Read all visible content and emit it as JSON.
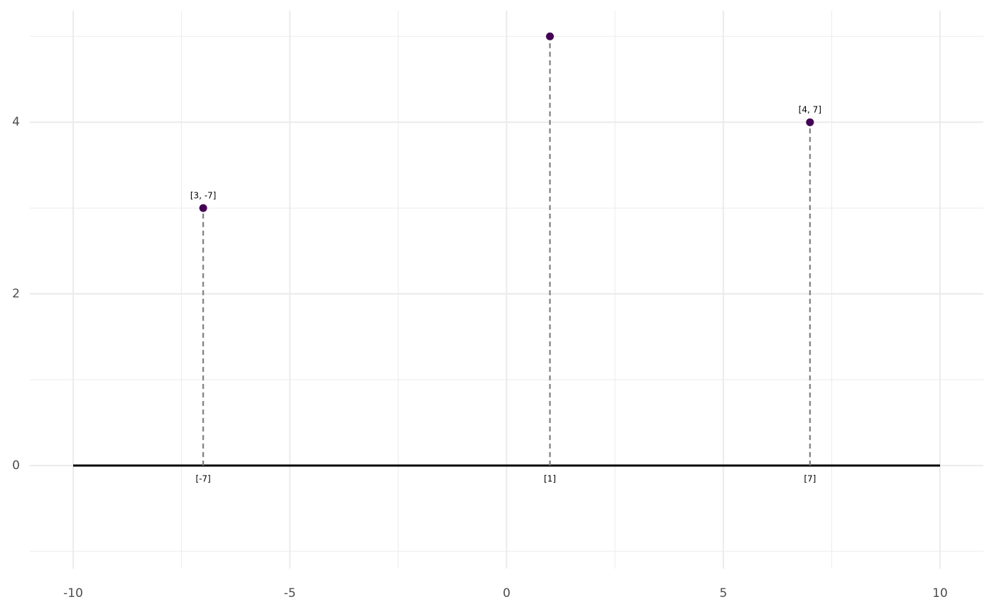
{
  "chart_data": {
    "type": "lollipop",
    "x": [
      -7,
      1,
      7
    ],
    "values": [
      3,
      5,
      4
    ],
    "point_labels": [
      "[3, -7]",
      null,
      "[4, 7]"
    ],
    "baseline_labels": [
      "[-7]",
      "[1]",
      "[7]"
    ],
    "color": "#440154",
    "stem_color": "#7f7f7f",
    "baseline": {
      "x": [
        -10,
        10
      ],
      "y": 0,
      "color": "#000000"
    },
    "xlim": [
      -11,
      11
    ],
    "xticks": [
      -10,
      -5,
      0,
      5,
      10
    ],
    "xminor": [
      -7.5,
      -2.5,
      2.5,
      7.5
    ],
    "ylim": [
      -1.2,
      5.3
    ],
    "yticks": [
      0,
      2,
      4
    ],
    "yminor": [
      -1,
      1,
      3,
      5
    ],
    "grid": true
  }
}
